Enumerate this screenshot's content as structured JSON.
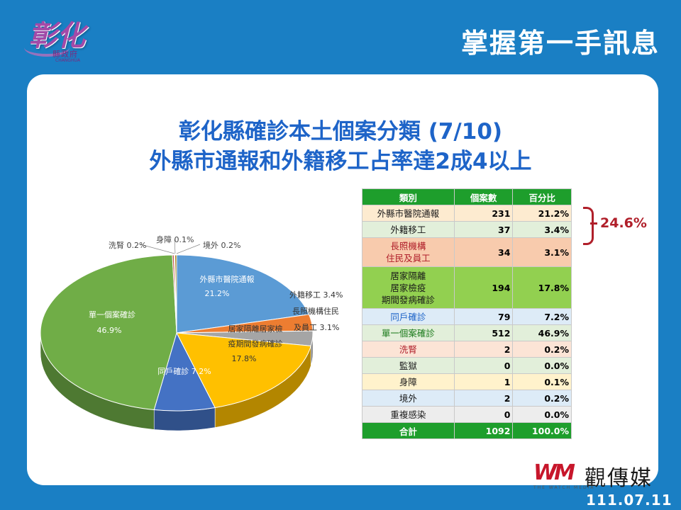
{
  "header": {
    "logo_text": "彰化",
    "logo_sub": "縣政府",
    "logo_en": "CHANGHUA",
    "title": "掌握第一手訊息"
  },
  "slide": {
    "title_line1": "彰化縣確診本土個案分類 (7/10)",
    "title_line2": "外縣市通報和外籍移工占率達2成4以上"
  },
  "chart_data": {
    "type": "pie",
    "title": "彰化縣確診本土個案分類 (7/10)",
    "slices": [
      {
        "label": "外縣市醫院通報",
        "value": 21.2,
        "color": "#5b9bd5",
        "display": "21.2%"
      },
      {
        "label": "外籍移工",
        "value": 3.4,
        "color": "#ed7d31",
        "display": "3.4%"
      },
      {
        "label": "長照機構住民及員工",
        "value": 3.1,
        "color": "#a5a5a5",
        "display": "3.1%"
      },
      {
        "label": "居家隔離居家檢疫期間發病確診",
        "value": 17.8,
        "color": "#ffc000",
        "display": "17.8%"
      },
      {
        "label": "同戶確診",
        "value": 7.2,
        "color": "#4472c4",
        "display": "7.2%"
      },
      {
        "label": "單一個案確診",
        "value": 46.9,
        "color": "#70ad47",
        "display": "46.9%"
      },
      {
        "label": "洗腎",
        "value": 0.2,
        "color": "#c0504d",
        "display": "0.2%"
      },
      {
        "label": "身障",
        "value": 0.1,
        "color": "#9e480e",
        "display": "0.1%"
      },
      {
        "label": "境外",
        "value": 0.2,
        "color": "#997300",
        "display": "0.2%"
      }
    ],
    "labels": {
      "hospital": [
        "外縣市醫院通報",
        "21.2%"
      ],
      "migrant": "外籍移工 3.4%",
      "ltc": [
        "長照機構住民",
        "及員工 3.1%"
      ],
      "quarantine": [
        "居家隔離居家檢",
        "疫期間發病確診",
        "17.8%"
      ],
      "household": "同戶確診 7.2%",
      "single": [
        "單一個案確診",
        "46.9%"
      ],
      "dialysis": "洗腎 0.2%",
      "disability": "身障 0.1%",
      "overseas": "境外 0.2%"
    }
  },
  "table": {
    "headers": [
      "類別",
      "個案數",
      "百分比"
    ],
    "rows": [
      {
        "label": "外縣市醫院通報",
        "count": "231",
        "pct": "21.2%",
        "bg": "#fdebd0",
        "color": "#1a1a1a"
      },
      {
        "label": "外籍移工",
        "count": "37",
        "pct": "3.4%",
        "bg": "#e2efda",
        "color": "#1a1a1a"
      },
      {
        "label": "長照機構\n住民及員工",
        "count": "34",
        "pct": "3.1%",
        "bg": "#f8cbad",
        "color": "#b01f2a"
      },
      {
        "label": "居家隔離\n居家檢疫\n期間發病確診",
        "count": "194",
        "pct": "17.8%",
        "bg": "#92d050",
        "color": "#1a1a1a"
      },
      {
        "label": "同戶確診",
        "count": "79",
        "pct": "7.2%",
        "bg": "#ddebf7",
        "color": "#1e64c8"
      },
      {
        "label": "單一個案確診",
        "count": "512",
        "pct": "46.9%",
        "bg": "#e2efda",
        "color": "#1a7a1a"
      },
      {
        "label": "洗腎",
        "count": "2",
        "pct": "0.2%",
        "bg": "#fce4d6",
        "color": "#b01f2a"
      },
      {
        "label": "監獄",
        "count": "0",
        "pct": "0.0%",
        "bg": "#e2efda",
        "color": "#1a1a1a"
      },
      {
        "label": "身障",
        "count": "1",
        "pct": "0.1%",
        "bg": "#fff2cc",
        "color": "#1a1a1a"
      },
      {
        "label": "境外",
        "count": "2",
        "pct": "0.2%",
        "bg": "#ddebf7",
        "color": "#1a1a1a"
      },
      {
        "label": "重複感染",
        "count": "0",
        "pct": "0.0%",
        "bg": "#ededed",
        "color": "#1a1a1a"
      }
    ],
    "total": {
      "label": "合計",
      "count": "1092",
      "pct": "100.0%"
    }
  },
  "annotation": {
    "combined": "24.6%"
  },
  "watermark": {
    "mark": "WM",
    "name": "觀傳媒",
    "en": "THE WATCH MEDIA"
  },
  "date": "111.07.11"
}
